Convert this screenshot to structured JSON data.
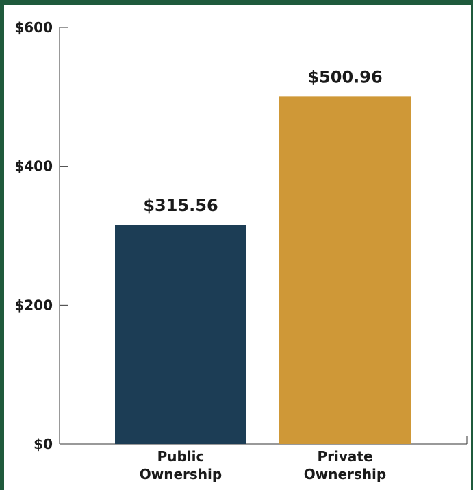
{
  "chart_data": {
    "type": "bar",
    "categories": [
      [
        "Public",
        "Ownership"
      ],
      [
        "Private",
        "Ownership"
      ]
    ],
    "values": [
      315.56,
      500.96
    ],
    "value_labels": [
      "$315.56",
      "$500.96"
    ],
    "ylim": [
      0,
      600
    ],
    "y_ticks": [
      0,
      200,
      400,
      600
    ],
    "y_tick_labels": [
      "$0",
      "$200",
      "$400",
      "$600"
    ],
    "colors": [
      "#1c3d55",
      "#cf9837"
    ],
    "frame_color": "#1f5a3c",
    "grid": false,
    "legend": "none"
  }
}
